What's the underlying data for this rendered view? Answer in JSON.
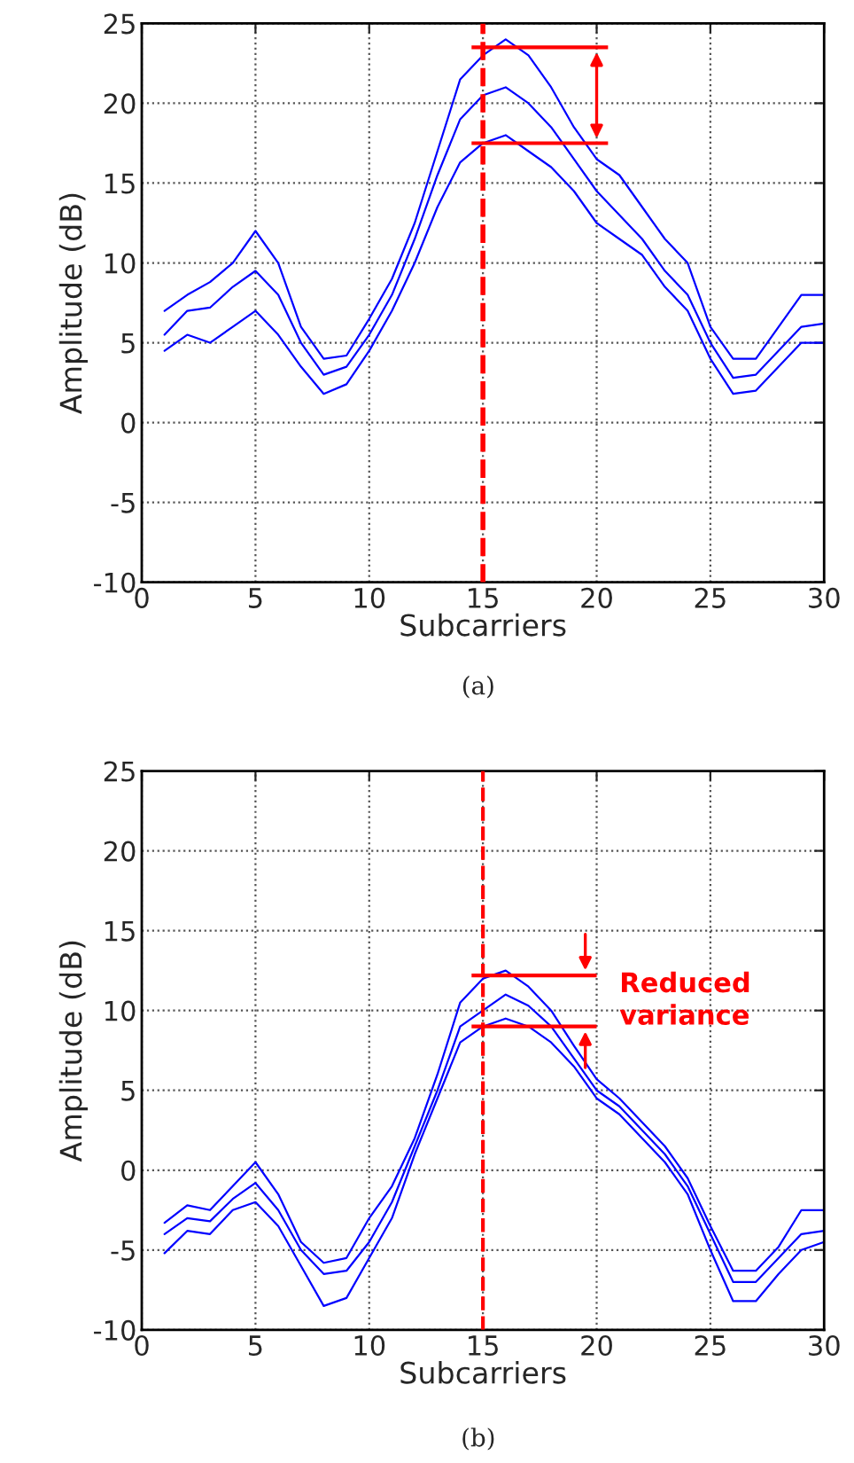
{
  "chart_data": [
    {
      "type": "line",
      "xlabel": "Subcarriers",
      "ylabel": "Amplitude (dB)",
      "x": [
        1,
        2,
        3,
        4,
        5,
        6,
        7,
        8,
        9,
        10,
        11,
        12,
        13,
        14,
        15,
        16,
        17,
        18,
        19,
        20,
        21,
        22,
        23,
        24,
        25,
        26,
        27,
        28,
        29,
        30
      ],
      "series": [
        {
          "color": "#0000ff",
          "values": [
            7,
            8,
            8.8,
            10,
            12,
            10,
            6,
            4,
            4.2,
            6.5,
            9,
            12.5,
            17,
            21.5,
            23,
            24,
            23,
            21,
            18.5,
            16.5,
            15.5,
            13.5,
            11.5,
            10,
            6,
            4,
            4,
            6,
            8,
            8
          ]
        },
        {
          "color": "#0000ff",
          "values": [
            5.5,
            7,
            7.2,
            8.5,
            9.5,
            8,
            5,
            3,
            3.5,
            5.5,
            8,
            11.5,
            15.5,
            19,
            20.5,
            21,
            20,
            18.5,
            16.5,
            14.5,
            13,
            11.5,
            9.5,
            8,
            5,
            2.8,
            3,
            4.5,
            6,
            6.2
          ]
        },
        {
          "color": "#0000ff",
          "values": [
            4.5,
            5.5,
            5,
            6,
            7,
            5.5,
            3.5,
            1.8,
            2.4,
            4.5,
            7,
            10,
            13.5,
            16.3,
            17.5,
            18,
            17,
            16,
            14.5,
            12.5,
            11.5,
            10.5,
            8.5,
            7,
            4,
            1.8,
            2,
            3.5,
            5,
            5
          ]
        }
      ],
      "xlim": [
        0,
        30
      ],
      "ylim": [
        -10,
        25
      ],
      "xticks": [
        0,
        5,
        10,
        15,
        20,
        25,
        30
      ],
      "yticks": [
        -10,
        -5,
        0,
        5,
        10,
        15,
        20,
        25
      ],
      "grid": true,
      "line_style": "solid",
      "ref_lines": [
        {
          "axis": "x",
          "value": 15,
          "color": "#ff0000",
          "line_style": "dashed"
        },
        {
          "axis": "y",
          "value": 23.5,
          "color": "#ff0000",
          "line_style": "solid"
        },
        {
          "axis": "y",
          "value": 17.5,
          "color": "#ff0000",
          "line_style": "solid"
        }
      ],
      "annotations": [
        "(a)"
      ]
    },
    {
      "type": "line",
      "xlabel": "Subcarriers",
      "ylabel": "Amplitude (dB)",
      "x": [
        1,
        2,
        3,
        4,
        5,
        6,
        7,
        8,
        9,
        10,
        11,
        12,
        13,
        14,
        15,
        16,
        17,
        18,
        19,
        20,
        21,
        22,
        23,
        24,
        25,
        26,
        27,
        28,
        29,
        30
      ],
      "series": [
        {
          "color": "#0000ff",
          "values": [
            -3.3,
            -2.2,
            -2.5,
            -1,
            0.5,
            -1.5,
            -4.5,
            -5.8,
            -5.5,
            -3,
            -1,
            2,
            6,
            10.5,
            12,
            12.5,
            11.5,
            10,
            7.8,
            5.7,
            4.5,
            3,
            1.5,
            -0.5,
            -3.5,
            -6.3,
            -6.3,
            -4.8,
            -2.5,
            -2.5
          ]
        },
        {
          "color": "#0000ff",
          "values": [
            -4,
            -3,
            -3.2,
            -1.8,
            -0.8,
            -2.5,
            -5,
            -6.5,
            -6.3,
            -4.5,
            -2,
            1.5,
            5,
            9,
            10,
            11,
            10.3,
            9,
            7,
            5,
            4,
            2.5,
            1,
            -1,
            -4,
            -7,
            -7,
            -5.5,
            -4,
            -3.8
          ]
        },
        {
          "color": "#0000ff",
          "values": [
            -5.2,
            -3.8,
            -4,
            -2.5,
            -2,
            -3.5,
            -6,
            -8.5,
            -8,
            -5.5,
            -3,
            1,
            4.5,
            8,
            9,
            9.5,
            9,
            8,
            6.5,
            4.5,
            3.5,
            2,
            0.5,
            -1.5,
            -5,
            -8.2,
            -8.2,
            -6.5,
            -5,
            -4.5
          ]
        }
      ],
      "xlim": [
        0,
        30
      ],
      "ylim": [
        -10,
        25
      ],
      "xticks": [
        0,
        5,
        10,
        15,
        20,
        25,
        30
      ],
      "yticks": [
        -10,
        -5,
        0,
        5,
        10,
        15,
        20,
        25
      ],
      "grid": true,
      "line_style": "solid",
      "ref_lines": [
        {
          "axis": "x",
          "value": 15,
          "color": "#ff0000",
          "line_style": "dashed"
        },
        {
          "axis": "y",
          "value": 12.2,
          "color": "#ff0000",
          "line_style": "solid"
        },
        {
          "axis": "y",
          "value": 9,
          "color": "#ff0000",
          "line_style": "solid"
        }
      ],
      "annotations": [
        "Reduced variance",
        "(b)"
      ]
    }
  ]
}
